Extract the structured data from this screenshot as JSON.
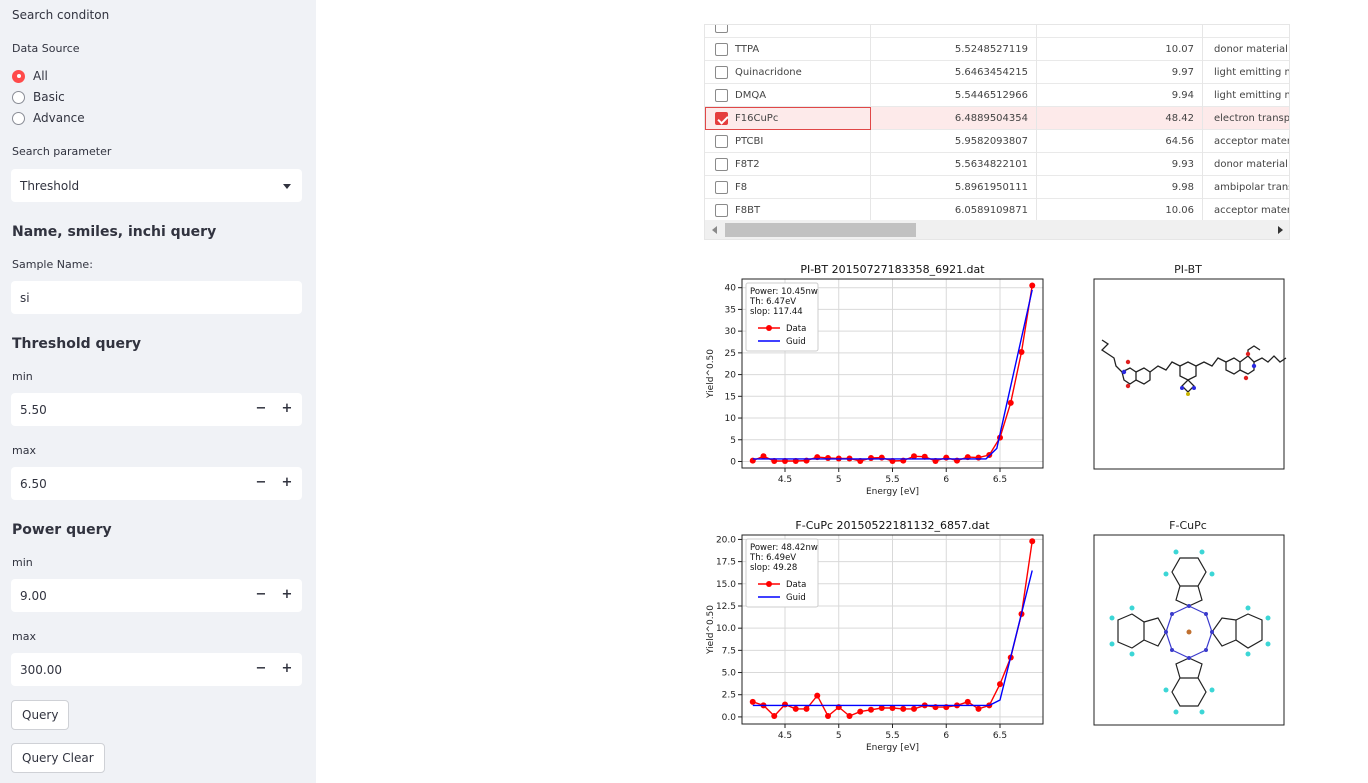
{
  "sidebar": {
    "search_condition": "Search conditon",
    "data_source_label": "Data Source",
    "data_source_options": [
      "All",
      "Basic",
      "Advance"
    ],
    "data_source_selected": "All",
    "search_parameter_label": "Search parameter",
    "search_parameter_value": "Threshold",
    "name_query_heading": "Name, smiles, inchi query",
    "sample_name_label": "Sample Name:",
    "sample_name_value": "si",
    "threshold_heading": "Threshold query",
    "threshold_min_label": "min",
    "threshold_min_value": "5.50",
    "threshold_max_label": "max",
    "threshold_max_value": "6.50",
    "power_heading": "Power query",
    "power_min_label": "min",
    "power_min_value": "9.00",
    "power_max_label": "max",
    "power_max_value": "300.00",
    "minus": "−",
    "plus": "+",
    "query_button": "Query",
    "query_clear_button": "Query Clear"
  },
  "table": {
    "rows": [
      {
        "name": "TTPA",
        "threshold": "5.5248527119",
        "power": "10.07",
        "type": "donor material",
        "checked": false
      },
      {
        "name": "Quinacridone",
        "threshold": "5.6463454215",
        "power": "9.97",
        "type": "light emitting m",
        "checked": false
      },
      {
        "name": "DMQA",
        "threshold": "5.5446512966",
        "power": "9.94",
        "type": "light emitting m",
        "checked": false
      },
      {
        "name": "F16CuPc",
        "threshold": "6.4889504354",
        "power": "48.42",
        "type": "electron transpo",
        "checked": true
      },
      {
        "name": "PTCBI",
        "threshold": "5.9582093807",
        "power": "64.56",
        "type": "acceptor materi",
        "checked": false
      },
      {
        "name": "F8T2",
        "threshold": "5.5634822101",
        "power": "9.93",
        "type": "donor material",
        "checked": false
      },
      {
        "name": "F8",
        "threshold": "5.8961950111",
        "power": "9.98",
        "type": "ambipolar trans",
        "checked": false
      },
      {
        "name": "F8BT",
        "threshold": "6.0589109871",
        "power": "10.06",
        "type": "acceptor materi",
        "checked": false
      }
    ]
  },
  "chart_data": [
    {
      "type": "line",
      "title": "PI-BT 20150727183358_6921.dat",
      "xlabel": "Energy [eV]",
      "ylabel": "Yield^0.50",
      "xlim": [
        4.1,
        6.9
      ],
      "ylim": [
        -1.5,
        42
      ],
      "xticks": [
        4.5,
        5.0,
        5.5,
        6.0,
        6.5
      ],
      "yticks": [
        0,
        5,
        10,
        15,
        20,
        25,
        30,
        35,
        40
      ],
      "legend_text": [
        "Power: 10.45nw",
        "Th: 6.47eV",
        "slop: 117.44"
      ],
      "legend_placement": "top-left",
      "grid": true,
      "series": [
        {
          "name": "Data",
          "color": "#ff0000",
          "marker": "o",
          "x": [
            4.2,
            4.3,
            4.4,
            4.5,
            4.6,
            4.7,
            4.8,
            4.9,
            5.0,
            5.1,
            5.2,
            5.3,
            5.4,
            5.5,
            5.6,
            5.7,
            5.8,
            5.9,
            6.0,
            6.1,
            6.2,
            6.3,
            6.4,
            6.5,
            6.6,
            6.7,
            6.8
          ],
          "y": [
            0.2,
            1.2,
            0.1,
            0.1,
            0.1,
            0.2,
            1.0,
            0.8,
            0.7,
            0.7,
            0.1,
            0.8,
            0.9,
            0.1,
            0.2,
            1.2,
            1.1,
            0.1,
            0.9,
            0.2,
            1.0,
            0.9,
            1.5,
            5.5,
            13.5,
            25.2,
            40.5
          ]
        },
        {
          "name": "Guid",
          "color": "#0000ff",
          "marker": "",
          "x": [
            4.2,
            6.37,
            6.47,
            6.8
          ],
          "y": [
            0.6,
            0.6,
            3.0,
            39.5
          ]
        }
      ]
    },
    {
      "type": "line",
      "title": "F-CuPc 20150522181132_6857.dat",
      "xlabel": "Energy [eV]",
      "ylabel": "Yield^0.50",
      "xlim": [
        4.1,
        6.9
      ],
      "ylim": [
        -0.8,
        20.5
      ],
      "xticks": [
        4.5,
        5.0,
        5.5,
        6.0,
        6.5
      ],
      "yticks": [
        0.0,
        2.5,
        5.0,
        7.5,
        10.0,
        12.5,
        15.0,
        17.5,
        20.0
      ],
      "legend_text": [
        "Power: 48.42nw",
        "Th: 6.49eV",
        "slop: 49.28"
      ],
      "legend_placement": "top-left",
      "grid": true,
      "series": [
        {
          "name": "Data",
          "color": "#ff0000",
          "marker": "o",
          "x": [
            4.2,
            4.3,
            4.4,
            4.5,
            4.6,
            4.7,
            4.8,
            4.9,
            5.0,
            5.1,
            5.2,
            5.3,
            5.4,
            5.5,
            5.6,
            5.7,
            5.8,
            5.9,
            6.0,
            6.1,
            6.2,
            6.3,
            6.4,
            6.5,
            6.6,
            6.7,
            6.8
          ],
          "y": [
            1.7,
            1.3,
            0.1,
            1.4,
            0.9,
            0.9,
            2.4,
            0.1,
            1.1,
            0.1,
            0.6,
            0.8,
            1.0,
            1.0,
            0.9,
            0.9,
            1.3,
            1.1,
            1.1,
            1.3,
            1.7,
            0.9,
            1.3,
            3.7,
            6.7,
            11.6,
            19.8
          ]
        },
        {
          "name": "Guid",
          "color": "#0000ff",
          "marker": "",
          "x": [
            4.2,
            6.4,
            6.5,
            6.8
          ],
          "y": [
            1.3,
            1.3,
            1.9,
            16.5
          ]
        }
      ]
    }
  ],
  "molecules": [
    {
      "title": "PI-BT"
    },
    {
      "title": "F-CuPc"
    }
  ],
  "colors": {
    "accent": "#ff4b4b",
    "sidebar_bg": "#f0f2f6",
    "data": "#ff0000",
    "guide": "#0000ff"
  }
}
